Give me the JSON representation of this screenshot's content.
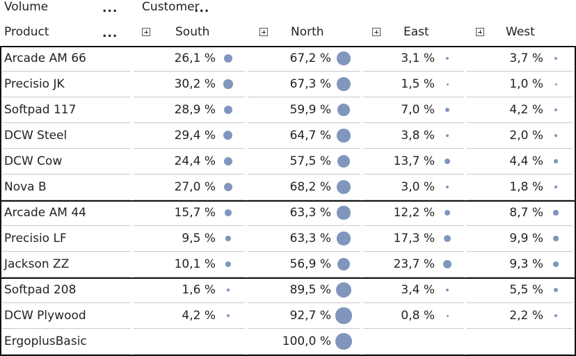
{
  "header": {
    "volume_label": "Volume",
    "product_label": "Product",
    "customer_label": "Customer",
    "more_glyph": "...",
    "regions": [
      "South",
      "North",
      "East",
      "West"
    ]
  },
  "accent_color": "#8096bd",
  "table": {
    "rows": [
      {
        "product": "Arcade AM 66",
        "values": [
          "26,1 %",
          "67,2 %",
          "3,1 %",
          "3,7 %"
        ],
        "shares": [
          0.261,
          0.672,
          0.031,
          0.037
        ],
        "group": 1
      },
      {
        "product": "Precisio JK",
        "values": [
          "30,2 %",
          "67,3 %",
          "1,5 %",
          "1,0 %"
        ],
        "shares": [
          0.302,
          0.673,
          0.015,
          0.01
        ],
        "group": 1
      },
      {
        "product": "Softpad 117",
        "values": [
          "28,9 %",
          "59,9 %",
          "7,0 %",
          "4,2 %"
        ],
        "shares": [
          0.289,
          0.599,
          0.07,
          0.042
        ],
        "group": 1
      },
      {
        "product": "DCW Steel",
        "values": [
          "29,4 %",
          "64,7 %",
          "3,8 %",
          "2,0 %"
        ],
        "shares": [
          0.294,
          0.647,
          0.038,
          0.02
        ],
        "group": 1
      },
      {
        "product": "DCW Cow",
        "values": [
          "24,4 %",
          "57,5 %",
          "13,7 %",
          "4,4 %"
        ],
        "shares": [
          0.244,
          0.575,
          0.137,
          0.044
        ],
        "group": 1
      },
      {
        "product": "Nova B",
        "values": [
          "27,0 %",
          "68,2 %",
          "3,0 %",
          "1,8 %"
        ],
        "shares": [
          0.27,
          0.682,
          0.03,
          0.018
        ],
        "group": 1
      },
      {
        "product": "Arcade AM 44",
        "values": [
          "15,7 %",
          "63,3 %",
          "12,2 %",
          "8,7 %"
        ],
        "shares": [
          0.157,
          0.633,
          0.122,
          0.087
        ],
        "group": 2
      },
      {
        "product": "Precisio LF",
        "values": [
          "9,5 %",
          "63,3 %",
          "17,3 %",
          "9,9 %"
        ],
        "shares": [
          0.095,
          0.633,
          0.173,
          0.099
        ],
        "group": 2
      },
      {
        "product": "Jackson ZZ",
        "values": [
          "10,1 %",
          "56,9 %",
          "23,7 %",
          "9,3 %"
        ],
        "shares": [
          0.101,
          0.569,
          0.237,
          0.093
        ],
        "group": 2
      },
      {
        "product": "Softpad 208",
        "values": [
          "1,6 %",
          "89,5 %",
          "3,4 %",
          "5,5 %"
        ],
        "shares": [
          0.016,
          0.895,
          0.034,
          0.055
        ],
        "group": 3
      },
      {
        "product": "DCW Plywood",
        "values": [
          "4,2 %",
          "92,7 %",
          "0,8 %",
          "2,2 %"
        ],
        "shares": [
          0.042,
          0.927,
          0.008,
          0.022
        ],
        "group": 3
      },
      {
        "product": "ErgoplusBasic",
        "values": [
          "",
          "100,0 %",
          "",
          ""
        ],
        "shares": [
          0,
          1.0,
          0,
          0
        ],
        "group": 3
      }
    ]
  }
}
